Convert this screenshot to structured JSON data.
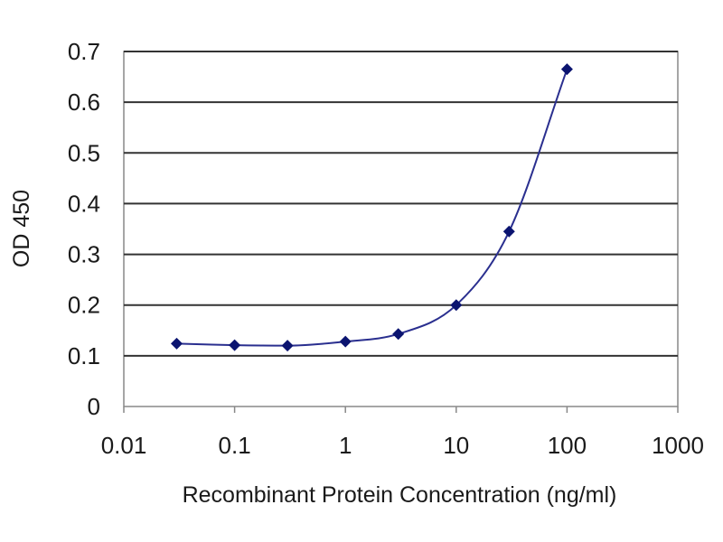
{
  "chart_data": {
    "type": "scatter",
    "xlabel": "Recombinant Protein Concentration (ng/ml)",
    "ylabel": "OD 450",
    "xscale": "log",
    "xlim": [
      0.01,
      1000
    ],
    "ylim": [
      0,
      0.7
    ],
    "x_ticks": [
      "0.01",
      "0.1",
      "1",
      "10",
      "100",
      "1000"
    ],
    "y_ticks": [
      "0",
      "0.1",
      "0.2",
      "0.3",
      "0.4",
      "0.5",
      "0.6",
      "0.7"
    ],
    "grid": "horizontal",
    "legend": "none",
    "fit_curve": true,
    "series": [
      {
        "x": [
          0.03,
          0.1,
          0.3,
          1,
          3,
          10,
          30,
          100
        ],
        "y": [
          0.124,
          0.121,
          0.12,
          0.128,
          0.143,
          0.2,
          0.345,
          0.665
        ]
      }
    ],
    "colors": {
      "marker": "#0b1470",
      "curve": "#2a2f8f",
      "gridline": "#333333",
      "axis": "#888888",
      "plot_background": "#ffffff"
    }
  }
}
